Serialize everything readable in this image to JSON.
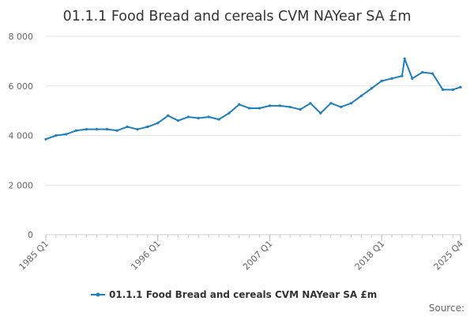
{
  "chart_data": {
    "type": "line",
    "title": "01.1.1 Food Bread and cereals CVM NAYear SA £m",
    "xlabel": "",
    "ylabel": "",
    "ylim": [
      0,
      8000
    ],
    "yticks": [
      0,
      2000,
      4000,
      6000,
      8000
    ],
    "ytick_labels": [
      "0",
      "2 000",
      "4 000",
      "6 000",
      "8 000"
    ],
    "xtick_labels": [
      "1985 Q1",
      "1996 Q1",
      "2007 Q1",
      "2018 Q1",
      "2025 Q4"
    ],
    "grid": true,
    "legend_position": "bottom",
    "series": [
      {
        "name": "01.1.1 Food Bread and cereals CVM NAYear SA £m",
        "color": "#1f7fbb",
        "x": [
          "1985 Q1",
          "1986 Q1",
          "1987 Q1",
          "1988 Q1",
          "1989 Q1",
          "1990 Q1",
          "1991 Q1",
          "1992 Q1",
          "1993 Q1",
          "1994 Q1",
          "1995 Q1",
          "1996 Q1",
          "1997 Q1",
          "1998 Q1",
          "1999 Q1",
          "2000 Q1",
          "2001 Q1",
          "2002 Q1",
          "2003 Q1",
          "2004 Q1",
          "2005 Q1",
          "2006 Q1",
          "2007 Q1",
          "2008 Q1",
          "2009 Q1",
          "2010 Q1",
          "2011 Q1",
          "2012 Q1",
          "2013 Q1",
          "2014 Q1",
          "2015 Q1",
          "2016 Q1",
          "2017 Q1",
          "2018 Q1",
          "2019 Q1",
          "2020 Q1",
          "2020 Q2",
          "2021 Q1",
          "2022 Q1",
          "2023 Q1",
          "2024 Q1",
          "2025 Q1",
          "2025 Q4"
        ],
        "values": [
          3850,
          4000,
          4050,
          4200,
          4250,
          4250,
          4250,
          4200,
          4350,
          4250,
          4350,
          4500,
          4800,
          4600,
          4750,
          4700,
          4750,
          4650,
          4900,
          5250,
          5100,
          5100,
          5200,
          5200,
          5150,
          5050,
          5300,
          4900,
          5300,
          5150,
          5300,
          5600,
          5900,
          6200,
          6300,
          6400,
          7100,
          6300,
          6550,
          6500,
          5850,
          5850,
          5950
        ]
      }
    ]
  },
  "legend": {
    "label": "01.1.1 Food Bread and cereals CVM NAYear SA £m"
  },
  "source_label": "Source:"
}
